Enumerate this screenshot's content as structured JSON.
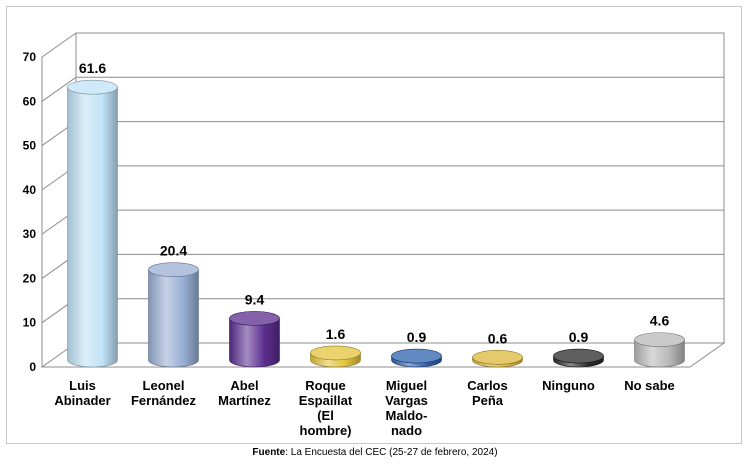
{
  "chart_data": {
    "type": "bar",
    "style": "3d-cylinder",
    "categories": [
      [
        "Luis",
        "Abinader"
      ],
      [
        "Leonel",
        "Fernández"
      ],
      [
        "Abel",
        "Martínez"
      ],
      [
        "Roque",
        "Espaillat",
        "(El",
        "hombre)"
      ],
      [
        "Miguel",
        "Vargas",
        "Maldo-",
        "nado"
      ],
      [
        "Carlos",
        "Peña"
      ],
      [
        "Ninguno"
      ],
      [
        "No sabe"
      ]
    ],
    "values": [
      61.6,
      20.4,
      9.4,
      1.6,
      0.9,
      0.6,
      0.9,
      4.6
    ],
    "data_labels": [
      "61.6",
      "20.4",
      "9.4",
      "1.6",
      "0.9",
      "0.6",
      "0.9",
      "4.6"
    ],
    "colors": [
      "#bfe2f6",
      "#98aed4",
      "#5b2d8e",
      "#e3c33c",
      "#2f61ad",
      "#dcb83a",
      "#2a2a2a",
      "#b8b8b8"
    ],
    "ylim": [
      0,
      70
    ],
    "yticks": [
      0,
      10,
      20,
      30,
      40,
      50,
      60,
      70
    ],
    "grid": true,
    "legend": "none"
  },
  "source": {
    "label": "Fuente",
    "text": ": La Encuesta del CEC (25-27 de febrero, 2024)"
  }
}
